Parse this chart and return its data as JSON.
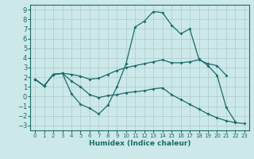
{
  "xlabel": "Humidex (Indice chaleur)",
  "bg_color": "#cce8e8",
  "grid_color": "#aacccc",
  "line_color": "#1a6b6b",
  "xlim": [
    -0.5,
    23.5
  ],
  "ylim": [
    -3.5,
    9.5
  ],
  "xticks": [
    0,
    1,
    2,
    3,
    4,
    5,
    6,
    7,
    8,
    9,
    10,
    11,
    12,
    13,
    14,
    15,
    16,
    17,
    18,
    19,
    20,
    21,
    22,
    23
  ],
  "yticks": [
    -3,
    -2,
    -1,
    0,
    1,
    2,
    3,
    4,
    5,
    6,
    7,
    8,
    9
  ],
  "curve1_x": [
    0,
    1,
    2,
    3,
    4,
    5,
    6,
    7,
    8,
    9,
    10,
    11,
    12,
    13,
    14,
    15,
    16,
    17,
    18,
    19,
    20,
    21,
    22
  ],
  "curve1_y": [
    1.8,
    1.1,
    2.3,
    2.4,
    0.3,
    -0.8,
    -1.2,
    -1.8,
    -0.9,
    1.0,
    3.4,
    7.2,
    7.8,
    8.8,
    8.7,
    7.4,
    6.5,
    7.0,
    3.9,
    3.2,
    2.2,
    -1.1,
    -2.6
  ],
  "curve2_x": [
    0,
    1,
    2,
    3,
    4,
    5,
    6,
    7,
    8,
    9,
    10,
    11,
    12,
    13,
    14,
    15,
    16,
    17,
    18,
    19,
    20,
    21
  ],
  "curve2_y": [
    1.8,
    1.1,
    2.3,
    2.4,
    2.3,
    2.1,
    1.8,
    1.9,
    2.3,
    2.7,
    3.0,
    3.2,
    3.4,
    3.6,
    3.8,
    3.5,
    3.5,
    3.6,
    3.8,
    3.4,
    3.2,
    2.2
  ],
  "curve3_x": [
    0,
    1,
    2,
    3,
    4,
    5,
    6,
    7,
    8,
    9,
    10,
    11,
    12,
    13,
    14,
    15,
    16,
    17,
    18,
    19,
    20,
    21,
    22,
    23
  ],
  "curve3_y": [
    1.8,
    1.1,
    2.3,
    2.4,
    1.6,
    1.0,
    0.2,
    -0.1,
    0.1,
    0.2,
    0.4,
    0.5,
    0.6,
    0.8,
    0.9,
    0.2,
    -0.3,
    -0.8,
    -1.3,
    -1.8,
    -2.2,
    -2.5,
    -2.7,
    -2.8
  ]
}
